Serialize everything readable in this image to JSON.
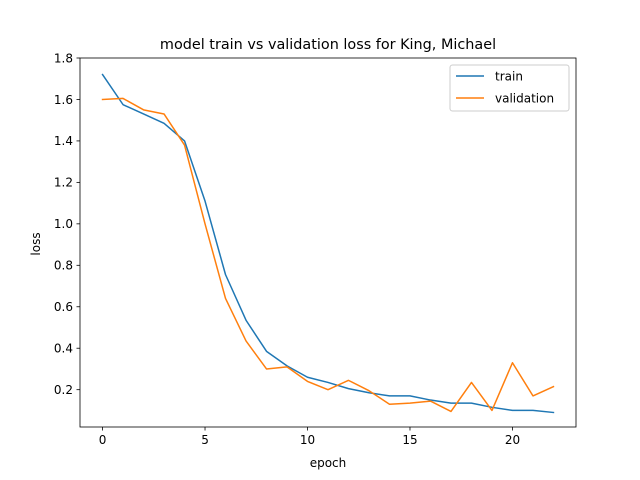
{
  "chart_data": {
    "type": "line",
    "title": "model train vs validation loss for King, Michael",
    "xlabel": "epoch",
    "ylabel": "loss",
    "xlim": [
      -1.1,
      23.1
    ],
    "ylim": [
      0.02,
      1.8
    ],
    "xticks": [
      0,
      5,
      10,
      15,
      20
    ],
    "yticks": [
      0.2,
      0.4,
      0.6,
      0.8,
      1.0,
      1.2,
      1.4,
      1.6,
      1.8
    ],
    "xtick_labels": [
      "0",
      "5",
      "10",
      "15",
      "20"
    ],
    "ytick_labels": [
      "0.2",
      "0.4",
      "0.6",
      "0.8",
      "1.0",
      "1.2",
      "1.4",
      "1.6",
      "1.8"
    ],
    "grid": false,
    "legend_position": "top-right",
    "x": [
      0,
      1,
      2,
      3,
      4,
      5,
      6,
      7,
      8,
      9,
      10,
      11,
      12,
      13,
      14,
      15,
      16,
      17,
      18,
      19,
      20,
      21,
      22
    ],
    "series": [
      {
        "name": "train",
        "color": "#1f77b4",
        "values": [
          1.72,
          1.575,
          1.53,
          1.485,
          1.4,
          1.11,
          0.755,
          0.535,
          0.385,
          0.315,
          0.26,
          0.235,
          0.205,
          0.185,
          0.17,
          0.17,
          0.15,
          0.135,
          0.135,
          0.115,
          0.1,
          0.1,
          0.09
        ]
      },
      {
        "name": "validation",
        "color": "#ff7f0e",
        "values": [
          1.6,
          1.605,
          1.55,
          1.53,
          1.38,
          1.0,
          0.64,
          0.435,
          0.3,
          0.31,
          0.24,
          0.2,
          0.245,
          0.195,
          0.13,
          0.135,
          0.145,
          0.095,
          0.235,
          0.1,
          0.33,
          0.17,
          0.215
        ]
      }
    ]
  }
}
